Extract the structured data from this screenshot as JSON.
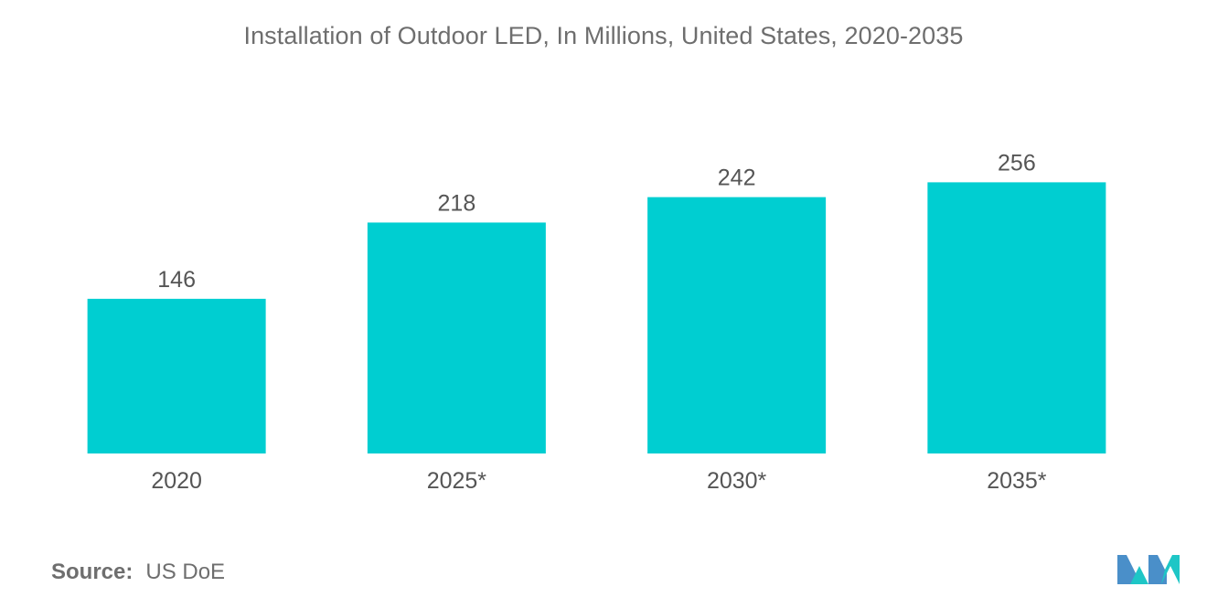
{
  "chart_data": {
    "type": "bar",
    "title": "Installation of Outdoor LED, In Millions, United States, 2020-2035",
    "categories": [
      "2020",
      "2025*",
      "2030*",
      "2035*"
    ],
    "values": [
      146,
      218,
      242,
      256
    ],
    "xlabel": "",
    "ylabel": "",
    "ylim": [
      0,
      290
    ],
    "grid": false,
    "legend": "none",
    "bar_color": "#00ced1"
  },
  "source": {
    "label": "Source:",
    "value": "US DoE"
  },
  "logo": {
    "icon": "mordor-intelligence-logo-icon",
    "colors": [
      "#4a8fc9",
      "#1ec6c6"
    ]
  }
}
